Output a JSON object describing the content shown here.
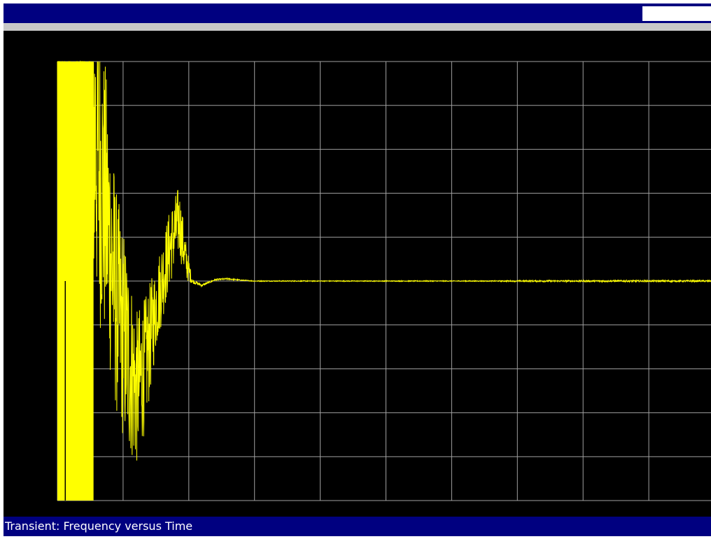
{
  "title_bar": {
    "field_value": ""
  },
  "status_bar": {
    "text": "Transient: Frequency versus Time"
  },
  "colors": {
    "trace": "#ffff00",
    "grid": "#a0a0a0",
    "background": "#000000",
    "bar": "#000080",
    "separator": "#c8c8c8"
  },
  "chart_data": {
    "type": "line",
    "title": "",
    "xlabel": "",
    "ylabel": "",
    "grid": true,
    "grid_divisions": {
      "x": 10,
      "y": 10
    },
    "xlim": [
      0,
      10
    ],
    "ylim": [
      -5,
      5
    ],
    "series": [
      {
        "values_description_free": true,
        "x": [
          0,
          0.55,
          0.75,
          0.9,
          1.05,
          1.2,
          1.35,
          1.5,
          1.7,
          1.85,
          1.95,
          2.05,
          2.2,
          2.4,
          2.6,
          2.8,
          3.0,
          3.5,
          4.5,
          5.5,
          6.5,
          7.5,
          8.5,
          9.5,
          10
        ],
        "y": [
          5,
          3.5,
          1.5,
          -0.5,
          -1.5,
          -2.5,
          -1.8,
          -0.6,
          0.7,
          1.4,
          0.5,
          0.0,
          -0.1,
          0.03,
          0.05,
          0.02,
          0.0,
          0.0,
          0.0,
          0.0,
          0.0,
          0.0,
          0.0,
          0.0,
          0.0
        ],
        "noise_amplitude": [
          5,
          4,
          3.2,
          2.6,
          2.4,
          1.8,
          1.5,
          1.0,
          0.9,
          0.8,
          0.5,
          0.05,
          0.03,
          0.02,
          0.02,
          0.01,
          0.01,
          0.01,
          0.01,
          0.01,
          0.01,
          0.02,
          0.02,
          0.02,
          0.02
        ]
      }
    ]
  }
}
